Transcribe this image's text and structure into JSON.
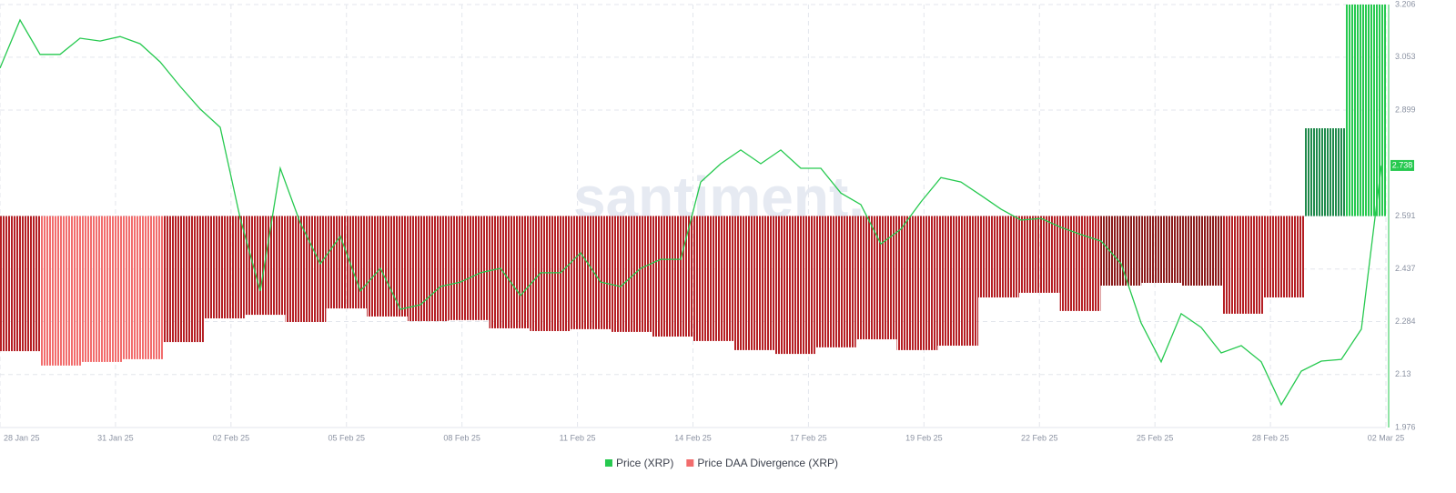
{
  "chart_data": {
    "type": "combo",
    "watermark": "santiment.",
    "x_labels": [
      "28 Jan 25",
      "31 Jan 25",
      "02 Feb 25",
      "05 Feb 25",
      "08 Feb 25",
      "11 Feb 25",
      "14 Feb 25",
      "17 Feb 25",
      "19 Feb 25",
      "22 Feb 25",
      "25 Feb 25",
      "28 Feb 25",
      "02 Mar 25"
    ],
    "ylim": [
      1.976,
      3.206
    ],
    "yticks": [
      3.206,
      3.053,
      2.899,
      2.591,
      2.437,
      2.284,
      2.13,
      1.976
    ],
    "y2lim": [
      -1,
      1
    ],
    "grid": true,
    "series": [
      {
        "name": "Price (XRP)",
        "type": "line",
        "axis": "y",
        "color": "#26c94f",
        "values": [
          3.021,
          3.161,
          3.061,
          3.061,
          3.108,
          3.1,
          3.113,
          3.092,
          3.039,
          2.968,
          2.902,
          2.849,
          2.584,
          2.373,
          2.73,
          2.571,
          2.452,
          2.532,
          2.373,
          2.439,
          2.32,
          2.333,
          2.386,
          2.399,
          2.426,
          2.439,
          2.36,
          2.426,
          2.426,
          2.484,
          2.399,
          2.386,
          2.439,
          2.465,
          2.465,
          2.69,
          2.743,
          2.783,
          2.743,
          2.783,
          2.73,
          2.73,
          2.658,
          2.624,
          2.51,
          2.553,
          2.632,
          2.703,
          2.69,
          2.651,
          2.611,
          2.579,
          2.584,
          2.558,
          2.537,
          2.518,
          2.452,
          2.28,
          2.167,
          2.307,
          2.267,
          2.193,
          2.214,
          2.167,
          2.042,
          2.14,
          2.169,
          2.174,
          2.262,
          2.738
        ]
      },
      {
        "name": "Price DAA Divergence (XRP)",
        "type": "bar",
        "axis": "y2",
        "color": "#f26d6d",
        "values": [
          -0.639,
          -0.707,
          -0.69,
          -0.677,
          -0.596,
          -0.484,
          -0.467,
          -0.501,
          -0.437,
          -0.475,
          -0.497,
          -0.492,
          -0.531,
          -0.544,
          -0.535,
          -0.548,
          -0.57,
          -0.591,
          -0.634,
          -0.652,
          -0.621,
          -0.583,
          -0.634,
          -0.613,
          -0.385,
          -0.363,
          -0.449,
          -0.329,
          -0.316,
          -0.329,
          -0.462,
          -0.385,
          0.415,
          1
        ],
        "bar_colors": [
          "#b51f24",
          "#f26d6d",
          "#f26d6d",
          "#f26d6d",
          "#b51f24",
          "#b51f24",
          "#b51f24",
          "#b51f24",
          "#b51f24",
          "#b51f24",
          "#b51f24",
          "#b51f24",
          "#b51f24",
          "#b51f24",
          "#b51f24",
          "#b51f24",
          "#b51f24",
          "#b51f24",
          "#b51f24",
          "#b51f24",
          "#b51f24",
          "#b51f24",
          "#b51f24",
          "#b51f24",
          "#b51f24",
          "#b51f24",
          "#b51f24",
          "#8b1a1a",
          "#8b1a1a",
          "#8b1a1a",
          "#b51f24",
          "#b51f24",
          "#1f8a4c",
          "#26c94f"
        ]
      }
    ]
  }
}
